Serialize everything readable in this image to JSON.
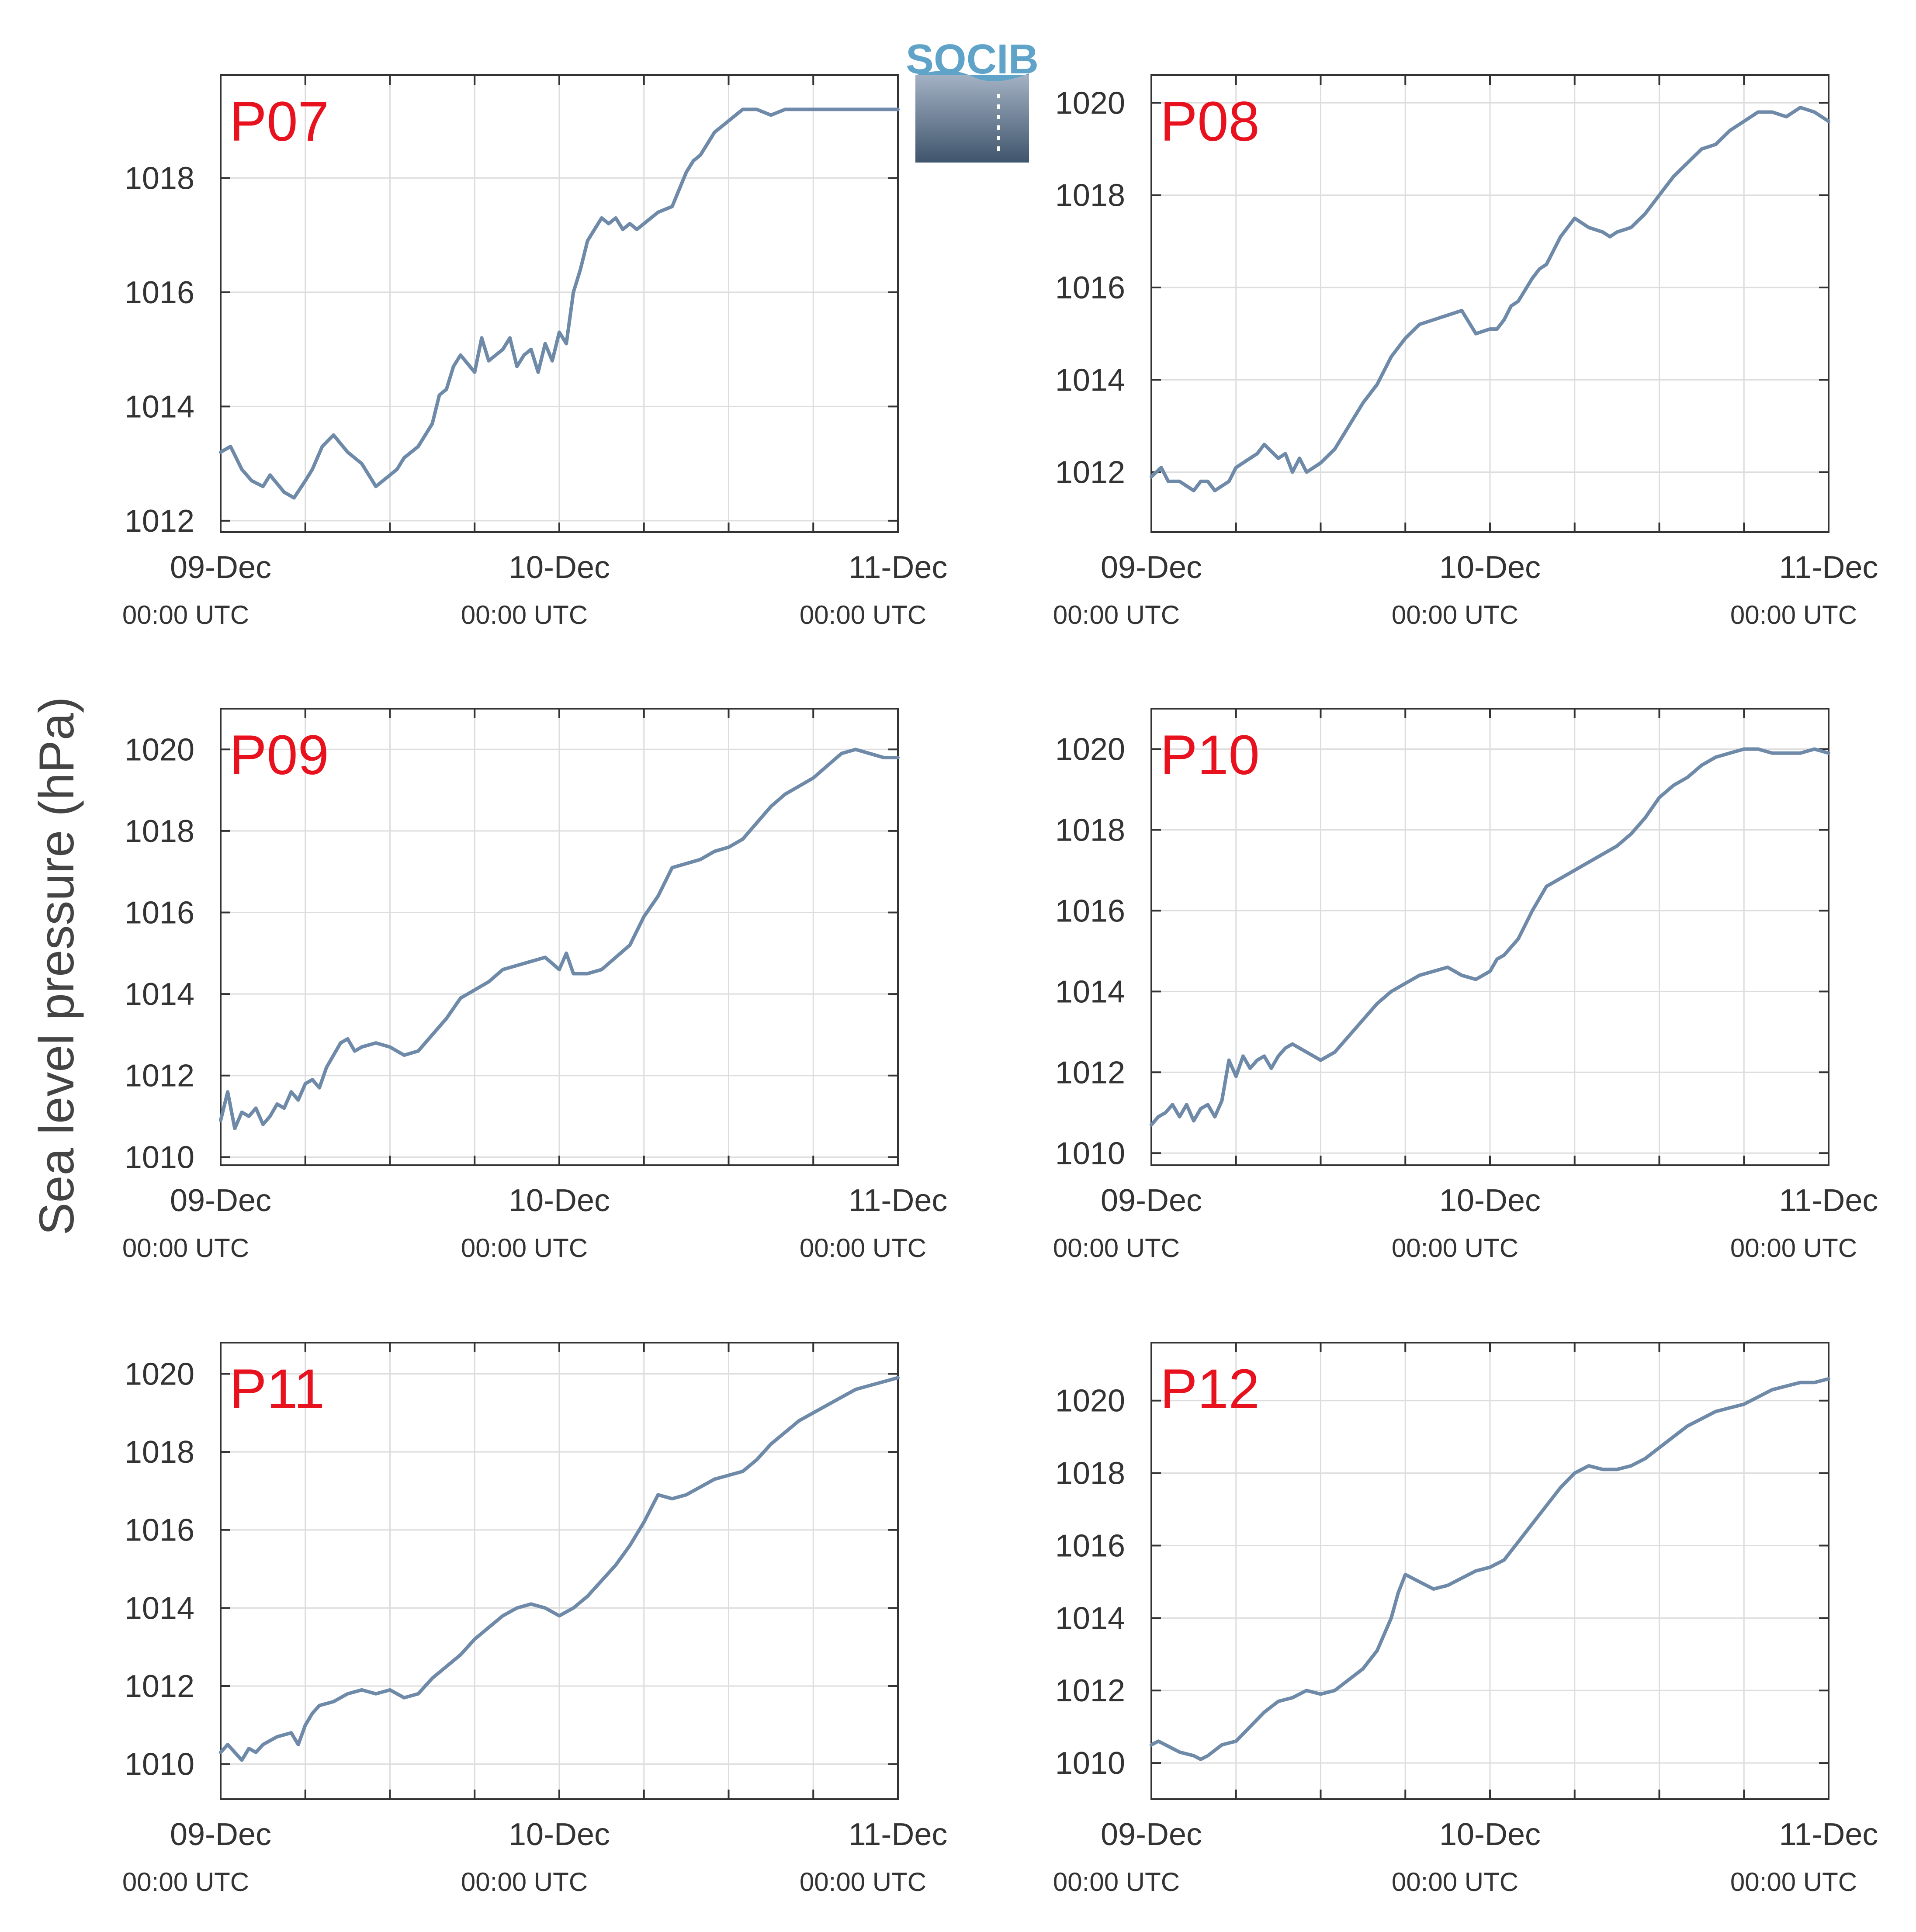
{
  "figure": {
    "ylabel": "Sea level pressure (hPa)",
    "logo_text": "SOCIB",
    "line_color": "#6e8aa8",
    "label_color": "#e8111e",
    "grid_color": "#dddddd"
  },
  "chart_data": [
    {
      "type": "line",
      "title": "P07",
      "x_ticks": [
        {
          "day": "09-Dec",
          "time": "00:00 UTC"
        },
        {
          "day": "10-Dec",
          "time": "00:00 UTC"
        },
        {
          "day": "11-Dec",
          "time": "00:00 UTC"
        }
      ],
      "x_range_hours": [
        0,
        48
      ],
      "ylim": [
        1011.8,
        1019.8
      ],
      "y_ticks": [
        1012,
        1014,
        1016,
        1018
      ],
      "grid": true,
      "series": [
        {
          "x_hours": [
            0,
            0.7,
            1.5,
            2.2,
            3,
            3.5,
            4.5,
            5.2,
            6,
            6.5,
            7.2,
            8,
            9,
            10,
            11,
            12,
            12.5,
            13,
            14,
            15,
            15.5,
            16,
            16.5,
            17,
            18,
            18.5,
            19,
            20,
            20.5,
            21,
            21.5,
            22,
            22.5,
            23,
            23.5,
            24,
            24.5,
            25,
            25.5,
            26,
            26.5,
            27,
            27.5,
            28,
            28.5,
            29,
            29.5,
            30,
            31,
            32,
            33,
            33.5,
            34,
            34.5,
            35,
            36,
            37,
            38,
            39,
            40,
            41,
            42,
            43,
            44,
            45,
            46,
            47,
            48
          ],
          "values": [
            1013.2,
            1013.3,
            1012.9,
            1012.7,
            1012.6,
            1012.8,
            1012.5,
            1012.4,
            1012.7,
            1012.9,
            1013.3,
            1013.5,
            1013.2,
            1013.0,
            1012.6,
            1012.8,
            1012.9,
            1013.1,
            1013.3,
            1013.7,
            1014.2,
            1014.3,
            1014.7,
            1014.9,
            1014.6,
            1015.2,
            1014.8,
            1015.0,
            1015.2,
            1014.7,
            1014.9,
            1015.0,
            1014.6,
            1015.1,
            1014.8,
            1015.3,
            1015.1,
            1016.0,
            1016.4,
            1016.9,
            1017.1,
            1017.3,
            1017.2,
            1017.3,
            1017.1,
            1017.2,
            1017.1,
            1017.2,
            1017.4,
            1017.5,
            1018.1,
            1018.3,
            1018.4,
            1018.6,
            1018.8,
            1019.0,
            1019.2,
            1019.2,
            1019.1,
            1019.2,
            1019.2,
            1019.2,
            1019.2,
            1019.2,
            1019.2,
            1019.2,
            1019.2,
            1019.2
          ]
        }
      ]
    },
    {
      "type": "line",
      "title": "P08",
      "x_ticks": [
        {
          "day": "09-Dec",
          "time": "00:00 UTC"
        },
        {
          "day": "10-Dec",
          "time": "00:00 UTC"
        },
        {
          "day": "11-Dec",
          "time": "00:00 UTC"
        }
      ],
      "x_range_hours": [
        0,
        48
      ],
      "ylim": [
        1010.7,
        1020.6
      ],
      "y_ticks": [
        1012,
        1014,
        1016,
        1018,
        1020
      ],
      "grid": true,
      "series": [
        {
          "x_hours": [
            0,
            0.7,
            1.2,
            2,
            3,
            3.5,
            4,
            4.5,
            5,
            5.5,
            6,
            7,
            7.5,
            8,
            9,
            9.5,
            10,
            10.5,
            11,
            11.5,
            12,
            13,
            14,
            15,
            16,
            17,
            18,
            19,
            20,
            21,
            22,
            23,
            24,
            24.5,
            25,
            25.5,
            26,
            27,
            27.5,
            28,
            29,
            30,
            31,
            32,
            32.5,
            33,
            34,
            35,
            36,
            37,
            38,
            39,
            40,
            41,
            42,
            43,
            44,
            45,
            46,
            47,
            48
          ],
          "values": [
            1011.9,
            1012.1,
            1011.8,
            1011.8,
            1011.6,
            1011.8,
            1011.8,
            1011.6,
            1011.7,
            1011.8,
            1012.1,
            1012.3,
            1012.4,
            1012.6,
            1012.3,
            1012.4,
            1012.0,
            1012.3,
            1012.0,
            1012.1,
            1012.2,
            1012.5,
            1013.0,
            1013.5,
            1013.9,
            1014.5,
            1014.9,
            1015.2,
            1015.3,
            1015.4,
            1015.5,
            1015.0,
            1015.1,
            1015.1,
            1015.3,
            1015.6,
            1015.7,
            1016.2,
            1016.4,
            1016.5,
            1017.1,
            1017.5,
            1017.3,
            1017.2,
            1017.1,
            1017.2,
            1017.3,
            1017.6,
            1018.0,
            1018.4,
            1018.7,
            1019.0,
            1019.1,
            1019.4,
            1019.6,
            1019.8,
            1019.8,
            1019.7,
            1019.9,
            1019.8,
            1019.6
          ]
        }
      ]
    },
    {
      "type": "line",
      "title": "P09",
      "x_ticks": [
        {
          "day": "09-Dec",
          "time": "00:00 UTC"
        },
        {
          "day": "10-Dec",
          "time": "00:00 UTC"
        },
        {
          "day": "11-Dec",
          "time": "00:00 UTC"
        }
      ],
      "x_range_hours": [
        0,
        48
      ],
      "ylim": [
        1009.8,
        1021.0
      ],
      "y_ticks": [
        1010,
        1012,
        1014,
        1016,
        1018,
        1020
      ],
      "grid": true,
      "series": [
        {
          "x_hours": [
            0,
            0.5,
            1,
            1.5,
            2,
            2.5,
            3,
            3.5,
            4,
            4.5,
            5,
            5.5,
            6,
            6.5,
            7,
            7.5,
            8,
            8.5,
            9,
            9.5,
            10,
            11,
            12,
            13,
            14,
            15,
            16,
            17,
            18,
            19,
            20,
            21,
            22,
            23,
            24,
            24.5,
            25,
            26,
            27,
            28,
            29,
            30,
            31,
            32,
            33,
            34,
            35,
            36,
            37,
            38,
            39,
            40,
            41,
            42,
            43,
            44,
            45,
            46,
            47,
            48
          ],
          "values": [
            1010.9,
            1011.6,
            1010.7,
            1011.1,
            1011.0,
            1011.2,
            1010.8,
            1011.0,
            1011.3,
            1011.2,
            1011.6,
            1011.4,
            1011.8,
            1011.9,
            1011.7,
            1012.2,
            1012.5,
            1012.8,
            1012.9,
            1012.6,
            1012.7,
            1012.8,
            1012.7,
            1012.5,
            1012.6,
            1013.0,
            1013.4,
            1013.9,
            1014.1,
            1014.3,
            1014.6,
            1014.7,
            1014.8,
            1014.9,
            1014.6,
            1015.0,
            1014.5,
            1014.5,
            1014.6,
            1014.9,
            1015.2,
            1015.9,
            1016.4,
            1017.1,
            1017.2,
            1017.3,
            1017.5,
            1017.6,
            1017.8,
            1018.2,
            1018.6,
            1018.9,
            1019.1,
            1019.3,
            1019.6,
            1019.9,
            1020.0,
            1019.9,
            1019.8,
            1019.8
          ]
        }
      ]
    },
    {
      "type": "line",
      "title": "P10",
      "x_ticks": [
        {
          "day": "09-Dec",
          "time": "00:00 UTC"
        },
        {
          "day": "10-Dec",
          "time": "00:00 UTC"
        },
        {
          "day": "11-Dec",
          "time": "00:00 UTC"
        }
      ],
      "x_range_hours": [
        0,
        48
      ],
      "ylim": [
        1009.7,
        1021.0
      ],
      "y_ticks": [
        1010,
        1012,
        1014,
        1016,
        1018,
        1020
      ],
      "grid": true,
      "series": [
        {
          "x_hours": [
            0,
            0.5,
            1,
            1.5,
            2,
            2.5,
            3,
            3.5,
            4,
            4.5,
            5,
            5.5,
            6,
            6.5,
            7,
            7.5,
            8,
            8.5,
            9,
            9.5,
            10,
            11,
            12,
            13,
            14,
            15,
            16,
            17,
            18,
            19,
            20,
            21,
            22,
            23,
            24,
            24.5,
            25,
            26,
            27,
            28,
            29,
            30,
            31,
            32,
            33,
            34,
            35,
            36,
            37,
            38,
            39,
            40,
            41,
            42,
            43,
            44,
            45,
            46,
            47,
            48
          ],
          "values": [
            1010.7,
            1010.9,
            1011.0,
            1011.2,
            1010.9,
            1011.2,
            1010.8,
            1011.1,
            1011.2,
            1010.9,
            1011.3,
            1012.3,
            1011.9,
            1012.4,
            1012.1,
            1012.3,
            1012.4,
            1012.1,
            1012.4,
            1012.6,
            1012.7,
            1012.5,
            1012.3,
            1012.5,
            1012.9,
            1013.3,
            1013.7,
            1014.0,
            1014.2,
            1014.4,
            1014.5,
            1014.6,
            1014.4,
            1014.3,
            1014.5,
            1014.8,
            1014.9,
            1015.3,
            1016.0,
            1016.6,
            1016.8,
            1017.0,
            1017.2,
            1017.4,
            1017.6,
            1017.9,
            1018.3,
            1018.8,
            1019.1,
            1019.3,
            1019.6,
            1019.8,
            1019.9,
            1020.0,
            1020.0,
            1019.9,
            1019.9,
            1019.9,
            1020.0,
            1019.9
          ]
        }
      ]
    },
    {
      "type": "line",
      "title": "P11",
      "x_ticks": [
        {
          "day": "09-Dec",
          "time": "00:00 UTC"
        },
        {
          "day": "10-Dec",
          "time": "00:00 UTC"
        },
        {
          "day": "11-Dec",
          "time": "00:00 UTC"
        }
      ],
      "x_range_hours": [
        0,
        48
      ],
      "ylim": [
        1009.1,
        1020.8
      ],
      "y_ticks": [
        1010,
        1012,
        1014,
        1016,
        1018,
        1020
      ],
      "grid": true,
      "series": [
        {
          "x_hours": [
            0,
            0.5,
            1,
            1.5,
            2,
            2.5,
            3,
            3.5,
            4,
            5,
            5.5,
            6,
            6.5,
            7,
            8,
            9,
            10,
            11,
            12,
            13,
            14,
            15,
            16,
            17,
            18,
            19,
            20,
            21,
            22,
            23,
            24,
            25,
            26,
            27,
            28,
            29,
            30,
            31,
            32,
            33,
            34,
            35,
            36,
            37,
            38,
            39,
            40,
            41,
            42,
            43,
            44,
            45,
            46,
            47,
            48
          ],
          "values": [
            1010.3,
            1010.5,
            1010.3,
            1010.1,
            1010.4,
            1010.3,
            1010.5,
            1010.6,
            1010.7,
            1010.8,
            1010.5,
            1011.0,
            1011.3,
            1011.5,
            1011.6,
            1011.8,
            1011.9,
            1011.8,
            1011.9,
            1011.7,
            1011.8,
            1012.2,
            1012.5,
            1012.8,
            1013.2,
            1013.5,
            1013.8,
            1014.0,
            1014.1,
            1014.0,
            1013.8,
            1014.0,
            1014.3,
            1014.7,
            1015.1,
            1015.6,
            1016.2,
            1016.9,
            1016.8,
            1016.9,
            1017.1,
            1017.3,
            1017.4,
            1017.5,
            1017.8,
            1018.2,
            1018.5,
            1018.8,
            1019.0,
            1019.2,
            1019.4,
            1019.6,
            1019.7,
            1019.8,
            1019.9
          ]
        }
      ]
    },
    {
      "type": "line",
      "title": "P12",
      "x_ticks": [
        {
          "day": "09-Dec",
          "time": "00:00 UTC"
        },
        {
          "day": "10-Dec",
          "time": "00:00 UTC"
        },
        {
          "day": "11-Dec",
          "time": "00:00 UTC"
        }
      ],
      "x_range_hours": [
        0,
        48
      ],
      "ylim": [
        1009.0,
        1021.6
      ],
      "y_ticks": [
        1010,
        1012,
        1014,
        1016,
        1018,
        1020
      ],
      "grid": true,
      "series": [
        {
          "x_hours": [
            0,
            0.5,
            1,
            2,
            3,
            3.5,
            4,
            5,
            6,
            7,
            8,
            9,
            10,
            11,
            12,
            13,
            14,
            15,
            16,
            17,
            17.5,
            18,
            19,
            20,
            21,
            22,
            23,
            24,
            25,
            26,
            27,
            28,
            29,
            30,
            31,
            32,
            33,
            34,
            35,
            36,
            37,
            38,
            39,
            40,
            41,
            42,
            43,
            44,
            45,
            46,
            47,
            48
          ],
          "values": [
            1010.5,
            1010.6,
            1010.5,
            1010.3,
            1010.2,
            1010.1,
            1010.2,
            1010.5,
            1010.6,
            1011.0,
            1011.4,
            1011.7,
            1011.8,
            1012.0,
            1011.9,
            1012.0,
            1012.3,
            1012.6,
            1013.1,
            1014.0,
            1014.7,
            1015.2,
            1015.0,
            1014.8,
            1014.9,
            1015.1,
            1015.3,
            1015.4,
            1015.6,
            1016.1,
            1016.6,
            1017.1,
            1017.6,
            1018.0,
            1018.2,
            1018.1,
            1018.1,
            1018.2,
            1018.4,
            1018.7,
            1019.0,
            1019.3,
            1019.5,
            1019.7,
            1019.8,
            1019.9,
            1020.1,
            1020.3,
            1020.4,
            1020.5,
            1020.5,
            1020.6
          ]
        }
      ]
    }
  ]
}
